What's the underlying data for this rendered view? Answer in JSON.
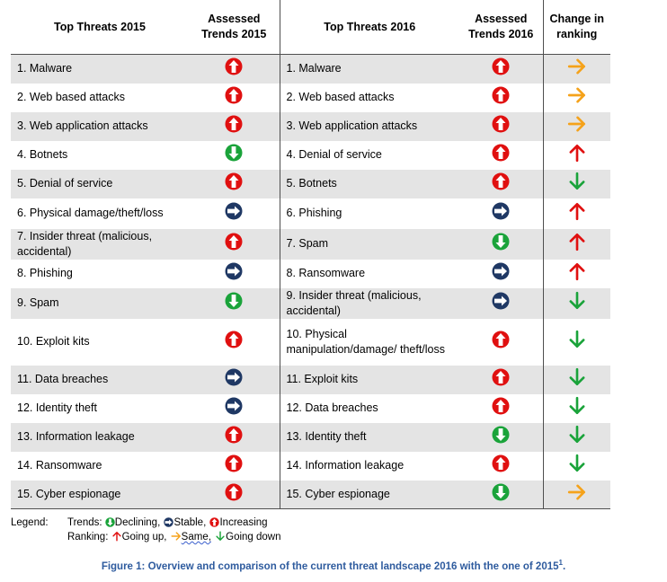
{
  "headers": {
    "top2015": "Top Threats 2015",
    "trend2015": "Assessed Trends 2015",
    "top2016": "Top Threats 2016",
    "trend2016": "Assessed Trends 2016",
    "change": "Change in ranking"
  },
  "colors": {
    "increasing": "#e01010",
    "stable": "#1f3864",
    "declining": "#1aa33a",
    "going_up": "#e01010",
    "same": "#f5a21a",
    "going_down": "#1aa33a",
    "row_shade": "#e4e4e4",
    "caption": "#2e5b9e"
  },
  "rows": [
    {
      "t2015": "1. Malware",
      "tr2015": "increasing",
      "t2016": "1. Malware",
      "tr2016": "increasing",
      "change": "same"
    },
    {
      "t2015": "2. Web based attacks",
      "tr2015": "increasing",
      "t2016": "2. Web based attacks",
      "tr2016": "increasing",
      "change": "same"
    },
    {
      "t2015": "3. Web application attacks",
      "tr2015": "increasing",
      "t2016": "3. Web application attacks",
      "tr2016": "increasing",
      "change": "same"
    },
    {
      "t2015": "4. Botnets",
      "tr2015": "declining",
      "t2016": "4. Denial of service",
      "tr2016": "increasing",
      "change": "going_up"
    },
    {
      "t2015": "5. Denial of service",
      "tr2015": "increasing",
      "t2016": "5. Botnets",
      "tr2016": "increasing",
      "change": "going_down"
    },
    {
      "t2015": "6. Physical damage/theft/loss",
      "tr2015": "stable",
      "t2016": "6. Phishing",
      "tr2016": "stable",
      "change": "going_up"
    },
    {
      "t2015": "7. Insider threat (malicious, accidental)",
      "tr2015": "increasing",
      "t2016": "7. Spam",
      "tr2016": "declining",
      "change": "going_up"
    },
    {
      "t2015": "8. Phishing",
      "tr2015": "stable",
      "t2016": "8. Ransomware",
      "tr2016": "stable",
      "change": "going_up"
    },
    {
      "t2015": "9. Spam",
      "tr2015": "declining",
      "t2016": "9. Insider threat (malicious, accidental)",
      "tr2016": "stable",
      "change": "going_down"
    },
    {
      "t2015": "10. Exploit kits",
      "tr2015": "increasing",
      "t2016": "10. Physical manipulation/damage/ theft/loss",
      "tr2016": "increasing",
      "change": "going_down"
    },
    {
      "t2015": "11. Data breaches",
      "tr2015": "stable",
      "t2016": "11. Exploit kits",
      "tr2016": "increasing",
      "change": "going_down"
    },
    {
      "t2015": "12. Identity theft",
      "tr2015": "stable",
      "t2016": "12. Data breaches",
      "tr2016": "increasing",
      "change": "going_down"
    },
    {
      "t2015": "13. Information leakage",
      "tr2015": "increasing",
      "t2016": "13. Identity theft",
      "tr2016": "declining",
      "change": "going_down"
    },
    {
      "t2015": "14. Ransomware",
      "tr2015": "increasing",
      "t2016": "14. Information leakage",
      "tr2016": "increasing",
      "change": "going_down"
    },
    {
      "t2015": "15. Cyber espionage",
      "tr2015": "increasing",
      "t2016": "15. Cyber espionage",
      "tr2016": "declining",
      "change": "same"
    }
  ],
  "legend": {
    "label": "Legend:",
    "trends_label": "Trends:",
    "declining": "Declining,",
    "stable": "Stable,",
    "increasing": "Increasing",
    "ranking_label": "Ranking:",
    "going_up": "Going up,",
    "same": "Same,",
    "going_down": "Going down"
  },
  "caption": {
    "text": "Figure 1: Overview and comparison of the current threat landscape 2016 with the one of 2015",
    "footnote": "1",
    "end": "."
  }
}
